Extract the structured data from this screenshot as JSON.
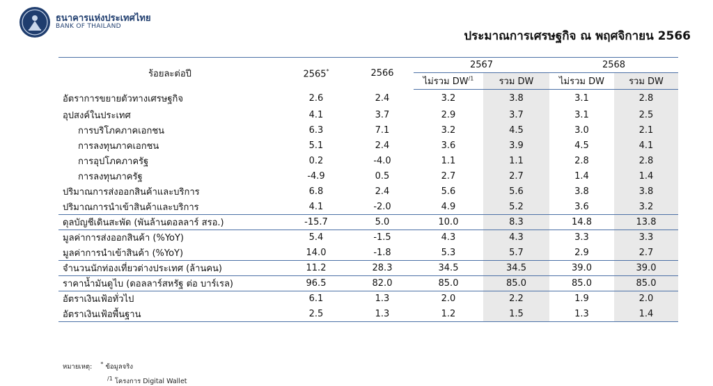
{
  "header": {
    "logo_th": "ธนาคารแห่งประเทศไทย",
    "logo_en": "BANK OF THAILAND",
    "title": "ประมาณการเศรษฐกิจ ณ พฤศจิกายน 2566"
  },
  "table": {
    "unit_label": "ร้อยละต่อปี",
    "col_2565": "2565",
    "col_2565_mark": "*",
    "col_2566": "2566",
    "year_2567": "2567",
    "year_2568": "2568",
    "sub_excl": "ไม่รวม DW",
    "sub_excl_note": "/1",
    "sub_incl": "รวม DW",
    "sub_excl_2568": "ไม่รวม DW",
    "sub_incl_2568": "รวม DW",
    "rows": [
      {
        "label": "อัตราการขยายตัวทางเศรษฐกิจ",
        "v": [
          "2.6",
          "2.4",
          "3.2",
          "3.8",
          "3.1",
          "2.8"
        ]
      },
      {
        "label": "อุปสงค์ในประเทศ",
        "v": [
          "4.1",
          "3.7",
          "2.9",
          "3.7",
          "3.1",
          "2.5"
        ]
      },
      {
        "label": "การบริโภคภาคเอกชน",
        "v": [
          "6.3",
          "7.1",
          "3.2",
          "4.5",
          "3.0",
          "2.1"
        ]
      },
      {
        "label": "การลงทุนภาคเอกชน",
        "v": [
          "5.1",
          "2.4",
          "3.6",
          "3.9",
          "4.5",
          "4.1"
        ]
      },
      {
        "label": "การอุปโภคภาครัฐ",
        "v": [
          "0.2",
          "-4.0",
          "1.1",
          "1.1",
          "2.8",
          "2.8"
        ]
      },
      {
        "label": "การลงทุนภาครัฐ",
        "v": [
          "-4.9",
          "0.5",
          "2.7",
          "2.7",
          "1.4",
          "1.4"
        ]
      },
      {
        "label": "ปริมาณการส่งออกสินค้าและบริการ",
        "v": [
          "6.8",
          "2.4",
          "5.6",
          "5.6",
          "3.8",
          "3.8"
        ]
      },
      {
        "label": "ปริมาณการนำเข้าสินค้าและบริการ",
        "v": [
          "4.1",
          "-2.0",
          "4.9",
          "5.2",
          "3.6",
          "3.2"
        ]
      },
      {
        "label": "ดุลบัญชีเดินสะพัด (พันล้านดอลลาร์ สรอ.)",
        "v": [
          "-15.7",
          "5.0",
          "10.0",
          "8.3",
          "14.8",
          "13.8"
        ]
      },
      {
        "label": "มูลค่าการส่งออกสินค้า (%YoY)",
        "v": [
          "5.4",
          "-1.5",
          "4.3",
          "4.3",
          "3.3",
          "3.3"
        ]
      },
      {
        "label": "มูลค่าการนำเข้าสินค้า (%YoY)",
        "v": [
          "14.0",
          "-1.8",
          "5.3",
          "5.7",
          "2.9",
          "2.7"
        ]
      },
      {
        "label": "จำนวนนักท่องเที่ยวต่างประเทศ (ล้านคน)",
        "v": [
          "11.2",
          "28.3",
          "34.5",
          "34.5",
          "39.0",
          "39.0"
        ]
      },
      {
        "label": "ราคาน้ำมันดูไบ (ดอลลาร์สหรัฐ ต่อ บาร์เรล)",
        "v": [
          "96.5",
          "82.0",
          "85.0",
          "85.0",
          "85.0",
          "85.0"
        ]
      },
      {
        "label": "อัตราเงินเฟ้อทั่วไป",
        "v": [
          "6.1",
          "1.3",
          "2.0",
          "2.2",
          "1.9",
          "2.0"
        ]
      },
      {
        "label": "อัตราเงินเฟ้อพื้นฐาน",
        "v": [
          "2.5",
          "1.3",
          "1.2",
          "1.5",
          "1.3",
          "1.4"
        ]
      }
    ]
  },
  "notes": {
    "label": "หมายเหตุ:",
    "note1_mark": "*",
    "note1": "ข้อมูลจริง",
    "note2_mark": "/1",
    "note2": "โครงการ Digital Wallet"
  }
}
